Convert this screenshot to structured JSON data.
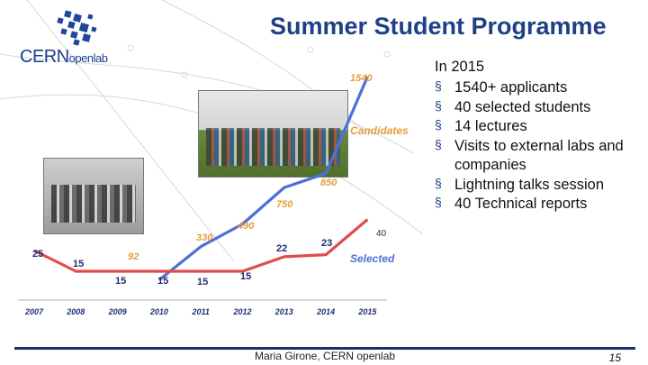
{
  "slide": {
    "title": "Summer Student Programme",
    "logo": {
      "brand": "CERN",
      "sub": "openlab"
    },
    "bullets_heading": "In 2015",
    "bullets": [
      "1540+ applicants",
      "40 selected students",
      "14 lectures",
      "Visits to external labs and companies",
      "Lightning talks session",
      "40 Technical reports"
    ],
    "footer": "Maria Girone, CERN openlab",
    "page_number": "15"
  },
  "chart_data": {
    "type": "line",
    "categories": [
      "2007",
      "2008",
      "2009",
      "2010",
      "2011",
      "2012",
      "2013",
      "2014",
      "2015"
    ],
    "series": [
      {
        "name": "Candidates",
        "values": [
          null,
          null,
          null,
          92,
          330,
          490,
          750,
          850,
          1540
        ],
        "color": "#4e6fd6"
      },
      {
        "name": "Selected",
        "values": [
          25,
          15,
          15,
          15,
          15,
          15,
          22,
          23,
          40
        ],
        "color": "#e14b4b"
      }
    ],
    "labels": {
      "candidates": [
        "92",
        "330",
        "490",
        "750",
        "850",
        "1540"
      ],
      "selected": [
        "25",
        "15",
        "15",
        "15",
        "15",
        "15",
        "22",
        "23",
        "40"
      ]
    },
    "legend": [
      "Candidates",
      "Selected"
    ],
    "grid": false
  }
}
